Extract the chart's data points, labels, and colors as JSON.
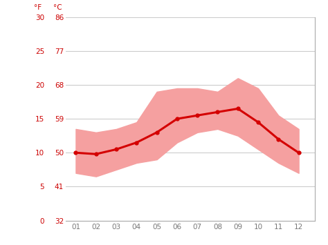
{
  "months": [
    1,
    2,
    3,
    4,
    5,
    6,
    7,
    8,
    9,
    10,
    11,
    12
  ],
  "month_labels": [
    "01",
    "02",
    "03",
    "04",
    "05",
    "06",
    "07",
    "08",
    "09",
    "10",
    "11",
    "12"
  ],
  "avg_temp_c": [
    10.0,
    9.8,
    10.5,
    11.5,
    13.0,
    15.0,
    15.5,
    16.0,
    16.5,
    14.5,
    12.0,
    10.0
  ],
  "max_temp_c": [
    13.5,
    13.0,
    13.5,
    14.5,
    19.0,
    19.5,
    19.5,
    19.0,
    21.0,
    19.5,
    15.5,
    13.5
  ],
  "min_temp_c": [
    7.0,
    6.5,
    7.5,
    8.5,
    9.0,
    11.5,
    13.0,
    13.5,
    12.5,
    10.5,
    8.5,
    7.0
  ],
  "ylim_c": [
    0,
    30
  ],
  "yticks_c": [
    0,
    5,
    10,
    15,
    20,
    25,
    30
  ],
  "yticks_f": [
    32,
    41,
    50,
    59,
    68,
    77,
    86
  ],
  "line_color": "#d40000",
  "band_color": "#f5a0a0",
  "grid_color": "#cccccc",
  "axis_color": "#cc0000",
  "bg_color": "#ffffff",
  "label_f": "°F",
  "label_c": "°C",
  "spine_color": "#aaaaaa"
}
